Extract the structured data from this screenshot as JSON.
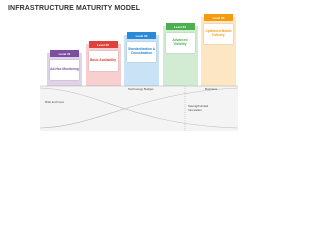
{
  "title": "INFRASTRUCTURE MATURITY MODEL",
  "levels": [
    {
      "label": "Level 01",
      "text": "Ad-Hoc Monitoring"
    },
    {
      "label": "Level 02",
      "text": "Basic Availability"
    },
    {
      "label": "Level 03",
      "text": "Standardization & Consolidation"
    },
    {
      "label": "Level 04",
      "text": "Advanced Visibility"
    },
    {
      "label": "Level 05",
      "text": "Optimized Mobile Delivery"
    }
  ],
  "chart_labels": {
    "risk": "Risk and Cost",
    "budget": "Technology Budget",
    "business": "Business",
    "saving": "Saving/Funded Innovation"
  }
}
